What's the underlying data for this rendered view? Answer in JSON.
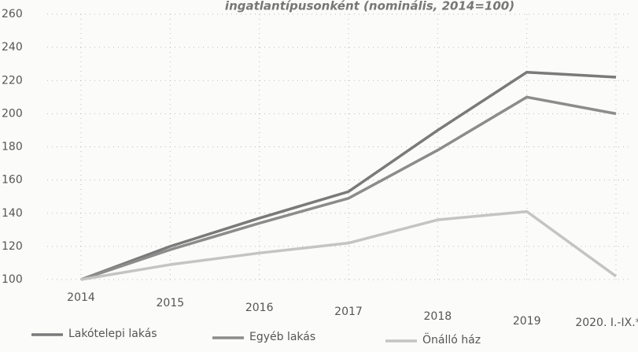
{
  "chart_data": {
    "type": "line",
    "title": "ingatlantípusonként (nominális, 2014=100)",
    "categories": [
      "2014",
      "2015",
      "2016",
      "2017",
      "2018",
      "2019",
      "2020. I.-IX.*"
    ],
    "series": [
      {
        "name": "Lakótelepi lakás",
        "color": "#7a7a7a",
        "values": [
          100,
          120,
          137,
          153,
          190,
          225,
          222
        ]
      },
      {
        "name": "Egyéb lakás",
        "color": "#8c8c8c",
        "values": [
          100,
          118,
          134,
          149,
          178,
          210,
          200
        ]
      },
      {
        "name": "Önálló ház",
        "color": "#c4c4c4",
        "values": [
          100,
          109,
          116,
          122,
          136,
          141,
          102
        ]
      }
    ],
    "ylim": [
      100,
      260
    ],
    "yticks": [
      100,
      120,
      140,
      160,
      180,
      200,
      220,
      240,
      260
    ],
    "grid": true,
    "legend": "bottom"
  }
}
